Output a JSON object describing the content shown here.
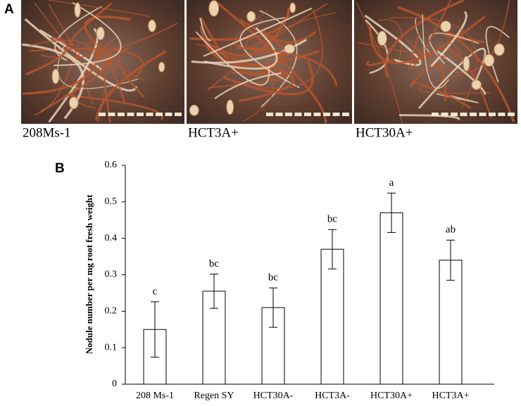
{
  "panel_a": {
    "label": "A",
    "images": [
      {
        "caption": "208Ms-1"
      },
      {
        "caption": "HCT3A+"
      },
      {
        "caption": "HCT30A+"
      }
    ]
  },
  "chart_data": {
    "type": "bar",
    "panel_label": "B",
    "y_label": "Nodule number per mg root fresh weight",
    "categories": [
      "208 Ms-1",
      "Regen SY",
      "HCT30A-",
      "HCT3A-",
      "HCT30A+",
      "HCT3A+"
    ],
    "values": [
      0.15,
      0.255,
      0.21,
      0.37,
      0.47,
      0.34
    ],
    "errors": [
      0.076,
      0.047,
      0.054,
      0.054,
      0.054,
      0.055
    ],
    "annotations": [
      "c",
      "bc",
      "bc",
      "bc",
      "a",
      "ab"
    ],
    "color": "#ffffff",
    "ylim": [
      0,
      0.6
    ],
    "yticks": [
      0,
      0.1,
      0.2,
      0.3,
      0.4,
      0.5,
      0.6
    ],
    "grid": false
  }
}
